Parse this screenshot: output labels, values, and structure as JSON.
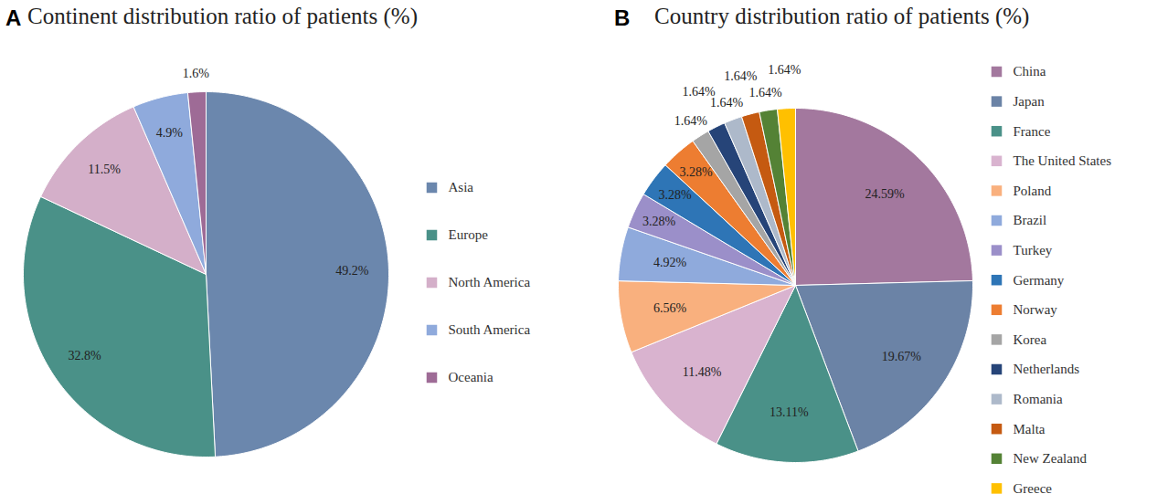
{
  "chart_data": [
    {
      "type": "pie",
      "panel_label": "A",
      "title": "Continent distribution ratio of patients (%)",
      "categories": [
        "Asia",
        "Europe",
        "North America",
        "South America",
        "Oceania"
      ],
      "values": [
        49.2,
        32.8,
        11.5,
        4.9,
        1.6
      ],
      "value_labels": [
        "49.2%",
        "32.8%",
        "11.5%",
        "4.9%",
        "1.6%"
      ],
      "colors": [
        "#6b87ad",
        "#4a9188",
        "#d4afc9",
        "#8faadc",
        "#9e6b96"
      ],
      "data_labels": true,
      "legend": "right"
    },
    {
      "type": "pie",
      "panel_label": "B",
      "title": "Country distribution ratio of patients (%)",
      "categories": [
        "China",
        "Japan",
        "France",
        "The United States",
        "Poland",
        "Brazil",
        "Turkey",
        "Germany",
        "Norway",
        "Korea",
        "Netherlands",
        "Romania",
        "Malta",
        "New Zealand",
        "Greece"
      ],
      "values": [
        24.59,
        19.67,
        13.11,
        11.48,
        6.56,
        4.92,
        3.28,
        3.28,
        3.28,
        1.64,
        1.64,
        1.64,
        1.64,
        1.64,
        1.64
      ],
      "value_labels": [
        "24.59%",
        "19.67%",
        "13.11%",
        "11.48%",
        "6.56%",
        "4.92%",
        "3.28%",
        "3.28%",
        "3.28%",
        "1.64%",
        "1.64%",
        "1.64%",
        "1.64%",
        "1.64%",
        "1.64%"
      ],
      "colors": [
        "#a3789e",
        "#6b83a6",
        "#4a9188",
        "#d9b3cf",
        "#f9b07e",
        "#8faadc",
        "#9b8fc9",
        "#2e75b6",
        "#ed7d31",
        "#a5a5a5",
        "#264478",
        "#adb9ca",
        "#c55a11",
        "#548235",
        "#ffc000"
      ],
      "data_labels": true,
      "legend": "right"
    }
  ]
}
